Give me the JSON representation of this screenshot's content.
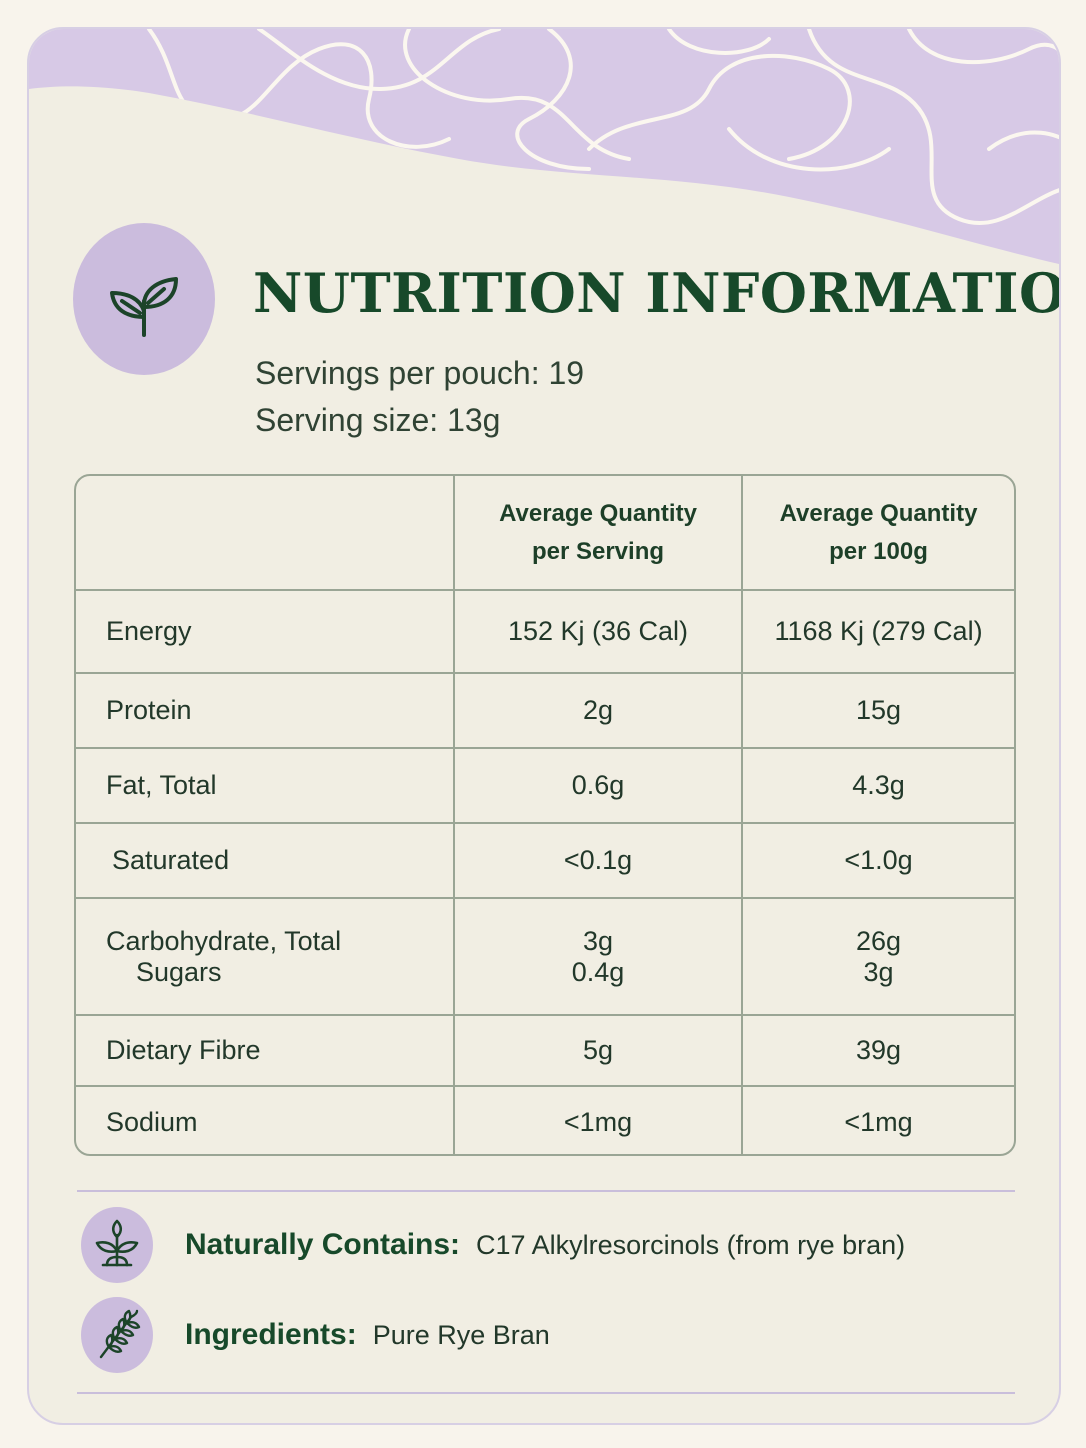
{
  "title": "NUTRITION INFORMATION",
  "servings_per_pouch": "Servings per pouch: 19",
  "serving_size": "Serving size: 13g",
  "table": {
    "headers": [
      "",
      [
        "Average Quantity",
        "per Serving"
      ],
      [
        "Average Quantity",
        "per 100g"
      ]
    ],
    "rows": [
      {
        "label": "Energy",
        "per_serving": "152 Kj (36 Cal)",
        "per_100g": "1168 Kj (279 Cal)"
      },
      {
        "label": "Protein",
        "per_serving": "2g",
        "per_100g": "15g"
      },
      {
        "label": "Fat, Total",
        "per_serving": "0.6g",
        "per_100g": "4.3g"
      },
      {
        "label": "Saturated",
        "per_serving": "<0.1g",
        "per_100g": "<1.0g"
      },
      {
        "label": "Carbohydrate, Total",
        "per_serving": "3g",
        "per_100g": "26g",
        "sub_label": "Sugars",
        "sub_per_serving": "0.4g",
        "sub_per_100g": "3g"
      },
      {
        "label": "Dietary Fibre",
        "per_serving": "5g",
        "per_100g": "39g"
      },
      {
        "label": "Sodium",
        "per_serving": "<1mg",
        "per_100g": "<1mg"
      }
    ]
  },
  "contains": {
    "label": "Naturally Contains:",
    "value": "C17 Alkylresorcinols (from rye bran)"
  },
  "ingredients": {
    "label": "Ingredients:",
    "value": "Pure Rye Bran"
  },
  "icons": {
    "title_badge": "leaf-sprout-icon",
    "contains": "plant-sprout-icon",
    "ingredients": "wheat-icon"
  },
  "colors": {
    "accent_lavender": "#cbbcdd",
    "title_green": "#17492a",
    "background": "#f1eee3"
  }
}
